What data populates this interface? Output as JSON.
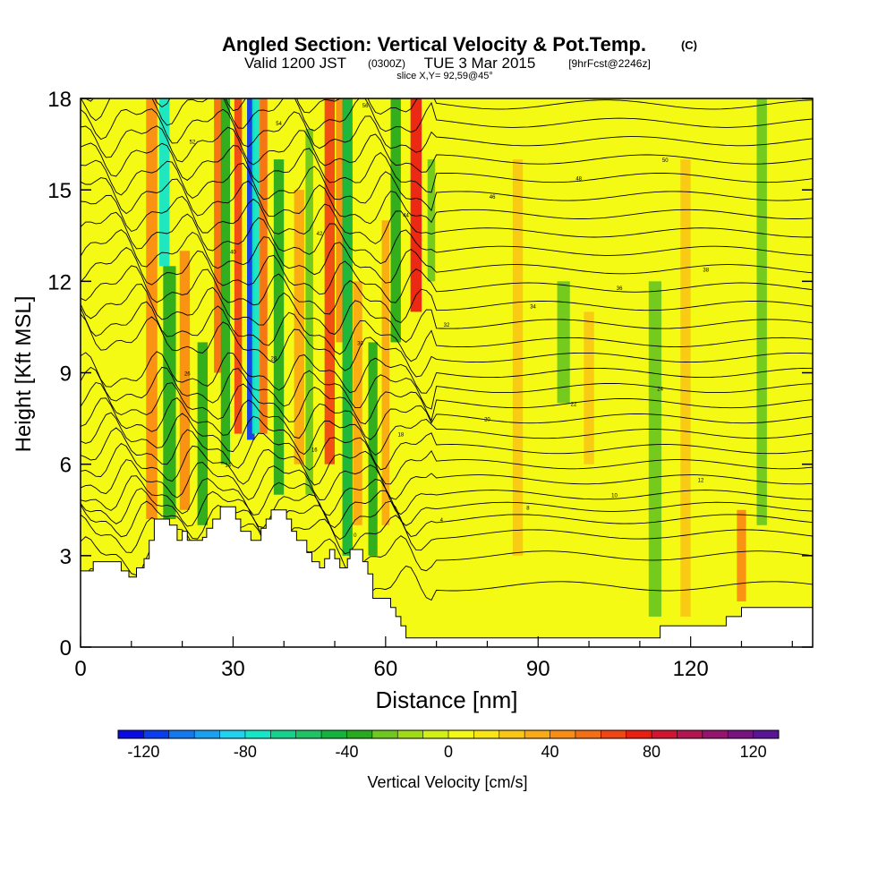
{
  "chart_data": {
    "type": "heatmap",
    "title": "Angled Section: Vertical Velocity & Pot.Temp.",
    "title_unit": "(C)",
    "subtitle": {
      "part1": "Valid 1200 JST",
      "part2": "(0300Z)",
      "part3": "TUE 3 Mar 2015",
      "part4": "[9hrFcst@2246z]"
    },
    "slice_label": "slice X,Y= 92,59@45°",
    "xlabel": "Distance [nm]",
    "ylabel": "Height [Kft MSL]",
    "xlim": [
      0,
      144
    ],
    "ylim": [
      0,
      18
    ],
    "xticks": [
      "0",
      "30",
      "60",
      "90",
      "120"
    ],
    "xtick_values": [
      0,
      30,
      60,
      90,
      120
    ],
    "yticks": [
      "0",
      "3",
      "6",
      "9",
      "12",
      "15",
      "18"
    ],
    "ytick_values": [
      0,
      3,
      6,
      9,
      12,
      15,
      18
    ],
    "colorbar": {
      "label": "Vertical Velocity [cm/s]",
      "min": -130,
      "max": 130,
      "step": 10,
      "tick_labels": [
        "-120",
        "-80",
        "-40",
        "0",
        "40",
        "80",
        "120"
      ],
      "tick_values": [
        -120,
        -80,
        -40,
        0,
        40,
        80,
        120
      ],
      "colors": [
        "#0a0ae6",
        "#0a3cf0",
        "#1478f0",
        "#19a0f0",
        "#1ed2f0",
        "#14e6c8",
        "#14d28c",
        "#1ec364",
        "#14b43c",
        "#28aa1e",
        "#6ec81e",
        "#a0dc14",
        "#d2f014",
        "#f5fa14",
        "#fae614",
        "#fac814",
        "#faaa14",
        "#fa8c14",
        "#f56e14",
        "#f04614",
        "#eb1e14",
        "#d21432",
        "#b41450",
        "#96146e",
        "#781482",
        "#5a1496"
      ]
    },
    "velocity_columns": [
      {
        "x": 14,
        "w": 2.2,
        "v": 45,
        "top": 18,
        "bot": 4.2
      },
      {
        "x": 16.5,
        "w": 2.0,
        "v": -80,
        "top": 18,
        "bot": 12.5
      },
      {
        "x": 17.5,
        "w": 2.5,
        "v": -35,
        "top": 12.5,
        "bot": 4.2
      },
      {
        "x": 20.5,
        "w": 2.0,
        "v": 45,
        "top": 13,
        "bot": 4.5
      },
      {
        "x": 24,
        "w": 2.0,
        "v": -35,
        "top": 10,
        "bot": 4.0
      },
      {
        "x": 27,
        "w": 1.5,
        "v": 55,
        "top": 18,
        "bot": 9
      },
      {
        "x": 28.5,
        "w": 1.8,
        "v": -40,
        "top": 18,
        "bot": 6
      },
      {
        "x": 31,
        "w": 1.5,
        "v": 60,
        "top": 18,
        "bot": 7
      },
      {
        "x": 33.5,
        "w": 1.5,
        "v": -120,
        "top": 18,
        "bot": 6.8
      },
      {
        "x": 34.5,
        "w": 1.5,
        "v": -80,
        "top": 18,
        "bot": 7
      },
      {
        "x": 36,
        "w": 1.5,
        "v": 50,
        "top": 18,
        "bot": 7
      },
      {
        "x": 39,
        "w": 2.0,
        "v": -40,
        "top": 16,
        "bot": 5
      },
      {
        "x": 43,
        "w": 2.0,
        "v": 35,
        "top": 15,
        "bot": 6
      },
      {
        "x": 45,
        "w": 1.5,
        "v": -30,
        "top": 17,
        "bot": 5
      },
      {
        "x": 49,
        "w": 2.0,
        "v": 65,
        "top": 18,
        "bot": 6
      },
      {
        "x": 51,
        "w": 1.5,
        "v": 40,
        "top": 18,
        "bot": 10
      },
      {
        "x": 52.5,
        "w": 2.0,
        "v": -45,
        "top": 18,
        "bot": 3
      },
      {
        "x": 54.5,
        "w": 1.8,
        "v": 30,
        "top": 12,
        "bot": 4
      },
      {
        "x": 57.5,
        "w": 1.8,
        "v": -40,
        "top": 10,
        "bot": 3
      },
      {
        "x": 60,
        "w": 1.5,
        "v": 35,
        "top": 14,
        "bot": 4
      },
      {
        "x": 62,
        "w": 2.0,
        "v": -40,
        "top": 18,
        "bot": 10
      },
      {
        "x": 66,
        "w": 2.2,
        "v": 70,
        "top": 18,
        "bot": 11
      },
      {
        "x": 69,
        "w": 1.5,
        "v": -25,
        "top": 16,
        "bot": 12
      },
      {
        "x": 86,
        "w": 2.0,
        "v": 25,
        "top": 16,
        "bot": 3
      },
      {
        "x": 95,
        "w": 2.5,
        "v": -30,
        "top": 12,
        "bot": 8
      },
      {
        "x": 100,
        "w": 2.0,
        "v": 25,
        "top": 11,
        "bot": 6
      },
      {
        "x": 113,
        "w": 2.5,
        "v": -25,
        "top": 12,
        "bot": 1
      },
      {
        "x": 119,
        "w": 2.0,
        "v": 20,
        "top": 16,
        "bot": 1
      },
      {
        "x": 130,
        "w": 1.8,
        "v": 45,
        "top": 4.5,
        "bot": 1.5
      },
      {
        "x": 134,
        "w": 2.0,
        "v": -25,
        "top": 18,
        "bot": 4
      }
    ],
    "terrain_profile": [
      [
        0,
        2.5
      ],
      [
        2.5,
        2.5
      ],
      [
        2.5,
        2.8
      ],
      [
        8,
        2.8
      ],
      [
        8,
        2.5
      ],
      [
        9.5,
        2.5
      ],
      [
        9.5,
        2.3
      ],
      [
        11,
        2.3
      ],
      [
        11,
        2.6
      ],
      [
        12.5,
        2.6
      ],
      [
        12.5,
        2.9
      ],
      [
        13.5,
        2.9
      ],
      [
        13.5,
        3.5
      ],
      [
        14.5,
        3.5
      ],
      [
        14.5,
        4.2
      ],
      [
        17.5,
        4.2
      ],
      [
        17.5,
        4.0
      ],
      [
        19,
        4.0
      ],
      [
        19,
        3.5
      ],
      [
        20,
        3.5
      ],
      [
        20,
        3.8
      ],
      [
        21,
        3.8
      ],
      [
        21,
        3.5
      ],
      [
        24,
        3.5
      ],
      [
        24,
        3.6
      ],
      [
        24.8,
        3.6
      ],
      [
        24.8,
        3.9
      ],
      [
        26,
        3.9
      ],
      [
        26,
        4.2
      ],
      [
        27.5,
        4.2
      ],
      [
        27.5,
        4.6
      ],
      [
        30.5,
        4.6
      ],
      [
        30.5,
        4.2
      ],
      [
        31.5,
        4.2
      ],
      [
        31.5,
        3.8
      ],
      [
        33.5,
        3.8
      ],
      [
        33.5,
        3.5
      ],
      [
        35.5,
        3.5
      ],
      [
        35.5,
        3.9
      ],
      [
        36.5,
        3.9
      ],
      [
        36.5,
        4.2
      ],
      [
        37.5,
        4.2
      ],
      [
        37.5,
        4.5
      ],
      [
        40.5,
        4.5
      ],
      [
        40.5,
        4.2
      ],
      [
        41.5,
        4.2
      ],
      [
        41.5,
        3.8
      ],
      [
        42.5,
        3.8
      ],
      [
        42.5,
        3.5
      ],
      [
        44.5,
        3.5
      ],
      [
        44.5,
        3.1
      ],
      [
        45.5,
        3.1
      ],
      [
        45.5,
        2.8
      ],
      [
        47,
        2.8
      ],
      [
        47,
        2.6
      ],
      [
        48,
        2.6
      ],
      [
        48,
        2.9
      ],
      [
        49,
        2.9
      ],
      [
        49,
        3.2
      ],
      [
        50,
        3.2
      ],
      [
        50,
        2.9
      ],
      [
        51,
        2.9
      ],
      [
        51,
        2.6
      ],
      [
        52.5,
        2.6
      ],
      [
        52.5,
        2.9
      ],
      [
        53,
        2.9
      ],
      [
        53,
        3.2
      ],
      [
        55.5,
        3.2
      ],
      [
        55.5,
        2.8
      ],
      [
        56.5,
        2.8
      ],
      [
        56.5,
        2.4
      ],
      [
        57.5,
        2.4
      ],
      [
        57.5,
        1.6
      ],
      [
        61,
        1.6
      ],
      [
        61,
        1.3
      ],
      [
        62,
        1.3
      ],
      [
        62,
        1.0
      ],
      [
        63,
        1.0
      ],
      [
        63,
        0.7
      ],
      [
        64,
        0.7
      ],
      [
        64,
        0.3
      ],
      [
        114,
        0.3
      ],
      [
        114,
        0.7
      ],
      [
        127,
        0.7
      ],
      [
        127,
        1.0
      ],
      [
        130,
        1.0
      ],
      [
        130,
        1.3
      ],
      [
        140.5,
        1.3
      ],
      [
        140.5,
        1.3
      ],
      [
        144,
        1.3
      ]
    ],
    "theta_contour_base_kft": [
      2.0,
      3.0,
      3.7,
      4.2,
      4.6,
      5.0,
      5.5,
      6.0,
      6.5,
      7.0,
      7.5,
      8.0,
      8.5,
      9.0,
      9.5,
      10.0,
      10.6,
      11.2,
      11.8,
      12.4,
      13.0,
      13.6,
      14.2,
      14.8,
      15.4,
      16.0,
      16.6,
      17.2,
      17.8
    ],
    "theta_contour_labels": [
      "-8",
      "-4",
      "0",
      "4",
      "8",
      "10",
      "12",
      "14",
      "16",
      "18",
      "20",
      "22",
      "24",
      "26",
      "28",
      "30",
      "32",
      "34",
      "36",
      "38",
      "40",
      "42",
      "44",
      "46",
      "48",
      "50",
      "52",
      "54",
      "56"
    ]
  }
}
